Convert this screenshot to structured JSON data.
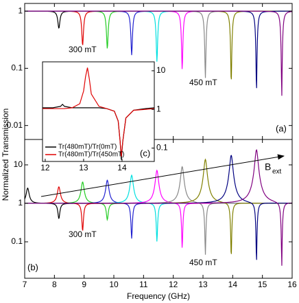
{
  "chart_data": [
    {
      "type": "resonance",
      "label": "(a)",
      "annotations": [
        "300 mT",
        "450 mT"
      ],
      "ylim": [
        0.0057,
        1.36
      ],
      "yscale": "log",
      "yticks": [
        1,
        0.1,
        0.01
      ],
      "series": [
        {
          "color": "#000000",
          "x": 8.15,
          "dip": 0.5
        },
        {
          "color": "#e00000",
          "x": 8.95,
          "dip": 0.25
        },
        {
          "color": "#22cc22",
          "x": 9.78,
          "dip": 0.22
        },
        {
          "color": "#1f1fd0",
          "x": 10.6,
          "dip": 0.17
        },
        {
          "color": "#00e0e0",
          "x": 11.45,
          "dip": 0.13
        },
        {
          "color": "#ff00ff",
          "x": 12.3,
          "dip": 0.094
        },
        {
          "color": "#888888",
          "x": 13.08,
          "dip": 0.067
        },
        {
          "color": "#808000",
          "x": 13.95,
          "dip": 0.052
        },
        {
          "color": "#000080",
          "x": 14.8,
          "dip": 0.038
        },
        {
          "color": "#800080",
          "x": 15.65,
          "dip": 0.03
        }
      ]
    },
    {
      "type": "ratio",
      "label": "(b)",
      "xlabel": "Frequency (GHz)",
      "ylabel": "Normalized Transmission",
      "annotations": [
        "300 mT",
        "450 mT"
      ],
      "arrow_label": "B",
      "arrow_label_sub": "ext",
      "xlim": [
        7,
        16
      ],
      "xticks": [
        7,
        8,
        9,
        10,
        11,
        12,
        13,
        14,
        15,
        16
      ],
      "ylim": [
        0.0113,
        45.7
      ],
      "yscale": "log",
      "yticks": [
        10,
        1,
        0.1
      ],
      "series": [
        {
          "color": "#000000",
          "peak_x": 7.1,
          "peak": 2.5,
          "dip_x": 8.15,
          "dip": 0.4
        },
        {
          "color": "#e00000",
          "peak_x": 8.15,
          "peak": 2.7,
          "dip_x": 8.95,
          "dip": 0.19
        },
        {
          "color": "#22cc22",
          "peak_x": 8.95,
          "peak": 3.6,
          "dip_x": 9.78,
          "dip": 0.37
        },
        {
          "color": "#1f1fd0",
          "peak_x": 9.78,
          "peak": 4.0,
          "dip_x": 10.6,
          "dip": 0.12
        },
        {
          "color": "#00e0e0",
          "peak_x": 10.6,
          "peak": 5.4,
          "dip_x": 11.45,
          "dip": 0.1
        },
        {
          "color": "#ff00ff",
          "peak_x": 11.45,
          "peak": 7.2,
          "dip_x": 12.3,
          "dip": 0.066
        },
        {
          "color": "#888888",
          "peak_x": 12.3,
          "peak": 9,
          "dip_x": 13.08,
          "dip": 0.044
        },
        {
          "color": "#808000",
          "peak_x": 13.08,
          "peak": 13.9,
          "dip_x": 13.95,
          "dip": 0.034
        },
        {
          "color": "#000080",
          "peak_x": 13.95,
          "peak": 17.8,
          "dip_x": 14.8,
          "dip": 0.025
        },
        {
          "color": "#800080",
          "peak_x": 14.8,
          "peak": 24.7,
          "dip_x": 15.65,
          "dip": 0.019
        }
      ]
    },
    {
      "type": "line",
      "label": "(c)",
      "xlim": [
        11.93,
        14.84
      ],
      "xticks": [
        12,
        13,
        14
      ],
      "ylim": [
        0.045,
        17
      ],
      "yscale": "log",
      "yticks": [
        10,
        1,
        0.1
      ],
      "x": [
        11.93,
        12.2,
        12.4,
        12.45,
        12.5,
        12.7,
        12.9,
        13.0,
        13.05,
        13.1,
        13.15,
        13.2,
        13.4,
        13.6,
        13.8,
        13.9,
        13.95,
        13.98,
        14.02,
        14.1,
        14.3,
        14.6,
        14.84
      ],
      "series": [
        {
          "name": "Tr(480mT)/Tr(0mT)",
          "color": "#000000",
          "values": [
            1.1,
            1.1,
            1.2,
            1.35,
            1.2,
            1.1,
            1.1,
            1.1,
            1.1,
            1.1,
            1.1,
            1.1,
            1.1,
            1.05,
            0.9,
            0.5,
            0.15,
            0.05,
            0.15,
            0.6,
            0.95,
            1.05,
            1.1
          ]
        },
        {
          "name": "Tr(480mT)/Tr(450mT)",
          "color": "#e00000",
          "values": [
            1.05,
            1.05,
            1.05,
            1.05,
            1.05,
            1.1,
            1.4,
            3,
            7,
            12,
            6,
            2.5,
            1.2,
            1.05,
            0.9,
            0.5,
            0.15,
            0.06,
            0.15,
            0.6,
            0.95,
            1.0,
            1.05
          ]
        }
      ]
    }
  ]
}
